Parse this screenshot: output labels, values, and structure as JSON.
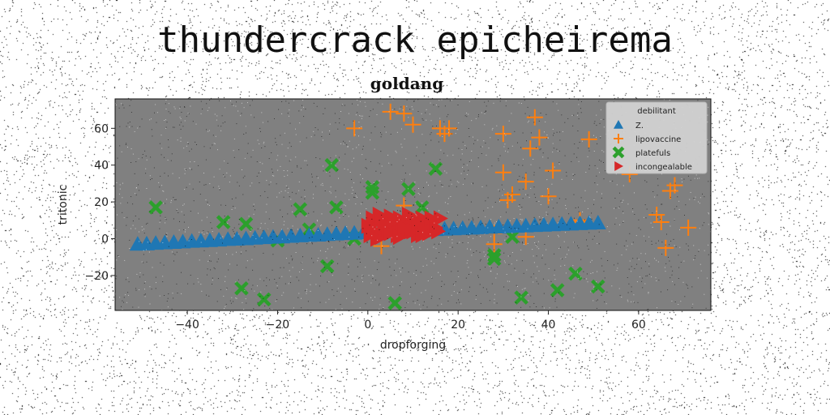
{
  "suptitle": "thundercrack epicheirema",
  "chart_data": {
    "type": "scatter",
    "title": "goldang",
    "xlabel": "dropforging",
    "ylabel": "tritonic",
    "xlim": [
      -56,
      76
    ],
    "ylim": [
      -39,
      76
    ],
    "xticks": [
      -40,
      -20,
      0,
      20,
      40,
      60
    ],
    "yticks": [
      -20,
      0,
      20,
      40,
      60
    ],
    "tick_labels_x": [
      "−40",
      "−20",
      "0",
      "20",
      "40",
      "60"
    ],
    "tick_labels_y": [
      "−20",
      "0",
      "20",
      "40",
      "60"
    ],
    "plot_background": "#808080",
    "legend_title": "debilitant",
    "legend_position": "upper right",
    "series": [
      {
        "name": "Z.",
        "marker": "triangle-up",
        "color": "#1f77b4",
        "x": [
          -51,
          -49,
          -47,
          -45,
          -43,
          -41,
          -39,
          -37,
          -35,
          -33,
          -31,
          -29,
          -27,
          -25,
          -23,
          -21,
          -19,
          -17,
          -15,
          -13,
          -11,
          -9,
          -7,
          -5,
          -3,
          -1,
          1,
          3,
          5,
          7,
          9,
          11,
          13,
          15,
          17,
          19,
          21,
          23,
          25,
          27,
          29,
          31,
          33,
          35,
          37,
          39,
          41,
          43,
          45,
          47,
          49,
          51
        ],
        "y": [
          -3,
          -2.8,
          -2.5,
          -2.2,
          -2,
          -1.7,
          -1.4,
          -1.2,
          -1,
          -0.7,
          -0.4,
          -0.2,
          0,
          0.3,
          0.6,
          0.8,
          1,
          1.3,
          1.6,
          1.8,
          2,
          2.3,
          2.6,
          2.8,
          3,
          3.3,
          3.6,
          3.8,
          4,
          4.2,
          4.4,
          4.6,
          4.8,
          5,
          5.2,
          5.4,
          5.6,
          5.8,
          6,
          6.2,
          6.4,
          6.6,
          6.8,
          7,
          7.2,
          7.4,
          7.6,
          7.8,
          8,
          8.2,
          8.4,
          8.6
        ]
      },
      {
        "name": "lipovaccine",
        "marker": "plus",
        "color": "#ff7f0e",
        "x": [
          5,
          8,
          -3,
          16,
          18,
          30,
          37,
          38,
          36,
          41,
          49,
          68,
          67,
          30,
          35,
          32,
          31,
          40,
          47,
          47,
          64,
          65,
          71,
          66,
          3,
          28,
          28,
          35,
          17,
          10,
          8,
          58
        ],
        "y": [
          69,
          68,
          60,
          60,
          60,
          57,
          66,
          55,
          49,
          37,
          54,
          29,
          26,
          36,
          31,
          24,
          21,
          23,
          9,
          10,
          13,
          9,
          6,
          -5,
          -4,
          3,
          -3,
          1,
          57,
          62,
          18,
          35
        ]
      },
      {
        "name": "platefuls",
        "marker": "x",
        "color": "#2ca02c",
        "x": [
          -47,
          -32,
          -27,
          -15,
          -13,
          -8,
          -7,
          -3,
          1,
          1,
          -20,
          -20,
          -9,
          -28,
          -23,
          28,
          28,
          32,
          34,
          42,
          46,
          51,
          6,
          9,
          12,
          15
        ],
        "y": [
          17,
          9,
          8,
          16,
          5,
          40,
          17,
          0,
          28,
          25,
          0,
          -1,
          -15,
          -27,
          -33,
          -9,
          -11,
          1,
          -32,
          -28,
          -19,
          -26,
          -35,
          27,
          17,
          38
        ]
      },
      {
        "name": "incongealable",
        "marker": "triangle-right",
        "color": "#d62728",
        "x": [
          0,
          0.5,
          1,
          1.5,
          2,
          2.5,
          3,
          3.5,
          4,
          4.5,
          5,
          5.5,
          6,
          6.5,
          7,
          7.5,
          8,
          8.5,
          9,
          9.5,
          10,
          10.5,
          11,
          11.5,
          12,
          12.5,
          13,
          13.5,
          14,
          14.5,
          15,
          15.5,
          16,
          1,
          2,
          3,
          4,
          5,
          6,
          7,
          8,
          9,
          10,
          11,
          12,
          13,
          14,
          15
        ],
        "y": [
          7,
          2,
          11,
          4,
          9,
          13,
          1,
          6,
          10,
          3,
          12,
          5,
          8,
          2,
          11,
          6,
          9,
          3,
          12,
          4,
          7,
          10,
          2,
          8,
          11,
          5,
          9,
          3,
          7,
          10,
          6,
          4,
          11,
          5,
          0,
          12,
          8,
          3,
          10,
          1,
          6,
          13,
          4,
          9,
          2,
          7,
          11,
          5
        ]
      }
    ]
  }
}
